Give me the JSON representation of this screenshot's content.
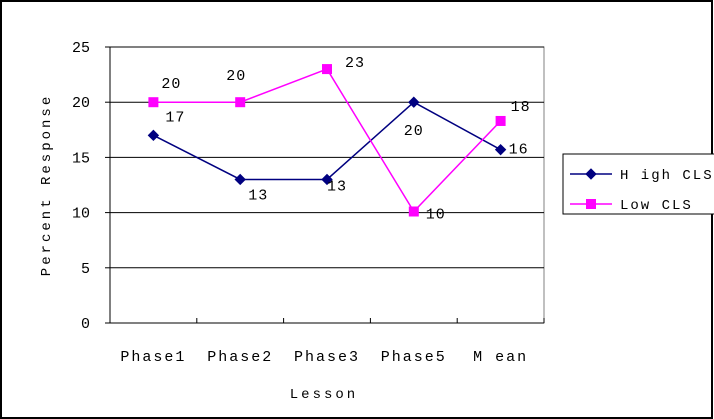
{
  "chart_data": {
    "type": "line",
    "title": "",
    "xlabel": "Lesson",
    "ylabel": "Percent Response",
    "categories": [
      "Phase1",
      "Phase2",
      "Phase3",
      "Phase5",
      "M ean"
    ],
    "ylim": [
      0,
      25
    ],
    "yticks": [
      "0",
      "5",
      "10",
      "15",
      "20",
      "25"
    ],
    "grid": "horizontal",
    "legend_position": "right",
    "series": [
      {
        "name": "H igh CLS",
        "values": [
          17,
          13,
          13,
          20,
          15.7
        ],
        "labels": [
          "17",
          "13",
          "13",
          "20",
          "16"
        ],
        "color": "#000080",
        "marker": "diamond"
      },
      {
        "name": "Low CLS",
        "values": [
          20,
          20,
          23,
          10.1,
          18.3
        ],
        "labels": [
          "20",
          "20",
          "23",
          "10",
          "18"
        ],
        "color": "#ff00ff",
        "marker": "square"
      }
    ]
  }
}
